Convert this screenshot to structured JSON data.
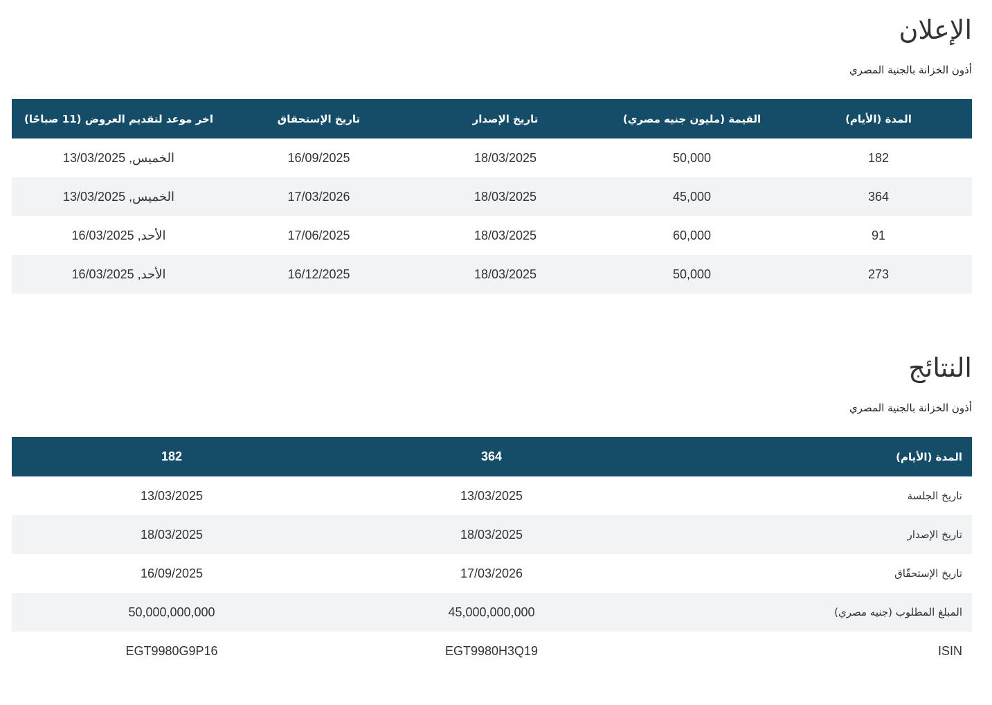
{
  "announcement": {
    "title": "الإعلان",
    "subtitle": "أذون الخزانة بالجنية المصري",
    "headers": {
      "tenor": "المدة (الأيام)",
      "amount": "القيمة (مليون جنيه مصري)",
      "issue_date": "تاريخ الإصدار",
      "maturity_date": "تاريخ الإستحقاق",
      "deadline": "اخر موعد لتقديم العروض (11 صباحًا)"
    },
    "rows": [
      {
        "tenor": "182",
        "amount": "50,000",
        "issue_date": "18/03/2025",
        "maturity_date": "16/09/2025",
        "deadline": "الخميس, 13/03/2025"
      },
      {
        "tenor": "364",
        "amount": "45,000",
        "issue_date": "18/03/2025",
        "maturity_date": "17/03/2026",
        "deadline": "الخميس, 13/03/2025"
      },
      {
        "tenor": "91",
        "amount": "60,000",
        "issue_date": "18/03/2025",
        "maturity_date": "17/06/2025",
        "deadline": "الأحد, 16/03/2025"
      },
      {
        "tenor": "273",
        "amount": "50,000",
        "issue_date": "18/03/2025",
        "maturity_date": "16/12/2025",
        "deadline": "الأحد, 16/03/2025"
      }
    ]
  },
  "results": {
    "title": "النتائج",
    "subtitle": "أذون الخزانة بالجنية المصري",
    "header": {
      "label": "المدة (الأيام)",
      "col1": "364",
      "col2": "182"
    },
    "rows": [
      {
        "label": "تاريخ الجلسة",
        "col1": "13/03/2025",
        "col2": "13/03/2025"
      },
      {
        "label": "تاريخ الإصدار",
        "col1": "18/03/2025",
        "col2": "18/03/2025"
      },
      {
        "label": "تاريخ الإستحقّاق",
        "col1": "17/03/2026",
        "col2": "16/09/2025"
      },
      {
        "label": "المبلغ المطلوب (جنيه مصري)",
        "col1": "45,000,000,000",
        "col2": "50,000,000,000"
      },
      {
        "label": "ISIN",
        "col1": "EGT9980H3Q19",
        "col2": "EGT9980G9P16"
      }
    ]
  },
  "colors": {
    "header_bg": "#154d68",
    "stripe_bg": "#f2f3f5",
    "text": "#333333"
  }
}
